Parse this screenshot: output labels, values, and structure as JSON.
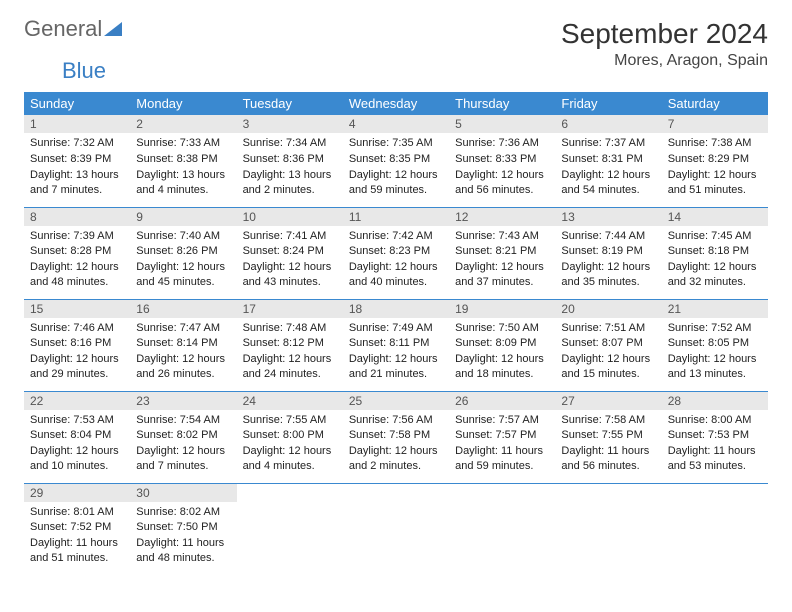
{
  "logo": {
    "word1": "General",
    "word2": "Blue"
  },
  "title": "September 2024",
  "location": "Mores, Aragon, Spain",
  "colors": {
    "header_bg": "#3a89d0",
    "header_text": "#ffffff",
    "daynum_bg": "#e8e8e8",
    "daynum_text": "#555555",
    "border": "#3a89d0",
    "logo_gray": "#666666",
    "logo_blue": "#3a7fc4"
  },
  "day_headers": [
    "Sunday",
    "Monday",
    "Tuesday",
    "Wednesday",
    "Thursday",
    "Friday",
    "Saturday"
  ],
  "weeks": [
    [
      {
        "n": "1",
        "sunrise": "Sunrise: 7:32 AM",
        "sunset": "Sunset: 8:39 PM",
        "daylight": "Daylight: 13 hours and 7 minutes."
      },
      {
        "n": "2",
        "sunrise": "Sunrise: 7:33 AM",
        "sunset": "Sunset: 8:38 PM",
        "daylight": "Daylight: 13 hours and 4 minutes."
      },
      {
        "n": "3",
        "sunrise": "Sunrise: 7:34 AM",
        "sunset": "Sunset: 8:36 PM",
        "daylight": "Daylight: 13 hours and 2 minutes."
      },
      {
        "n": "4",
        "sunrise": "Sunrise: 7:35 AM",
        "sunset": "Sunset: 8:35 PM",
        "daylight": "Daylight: 12 hours and 59 minutes."
      },
      {
        "n": "5",
        "sunrise": "Sunrise: 7:36 AM",
        "sunset": "Sunset: 8:33 PM",
        "daylight": "Daylight: 12 hours and 56 minutes."
      },
      {
        "n": "6",
        "sunrise": "Sunrise: 7:37 AM",
        "sunset": "Sunset: 8:31 PM",
        "daylight": "Daylight: 12 hours and 54 minutes."
      },
      {
        "n": "7",
        "sunrise": "Sunrise: 7:38 AM",
        "sunset": "Sunset: 8:29 PM",
        "daylight": "Daylight: 12 hours and 51 minutes."
      }
    ],
    [
      {
        "n": "8",
        "sunrise": "Sunrise: 7:39 AM",
        "sunset": "Sunset: 8:28 PM",
        "daylight": "Daylight: 12 hours and 48 minutes."
      },
      {
        "n": "9",
        "sunrise": "Sunrise: 7:40 AM",
        "sunset": "Sunset: 8:26 PM",
        "daylight": "Daylight: 12 hours and 45 minutes."
      },
      {
        "n": "10",
        "sunrise": "Sunrise: 7:41 AM",
        "sunset": "Sunset: 8:24 PM",
        "daylight": "Daylight: 12 hours and 43 minutes."
      },
      {
        "n": "11",
        "sunrise": "Sunrise: 7:42 AM",
        "sunset": "Sunset: 8:23 PM",
        "daylight": "Daylight: 12 hours and 40 minutes."
      },
      {
        "n": "12",
        "sunrise": "Sunrise: 7:43 AM",
        "sunset": "Sunset: 8:21 PM",
        "daylight": "Daylight: 12 hours and 37 minutes."
      },
      {
        "n": "13",
        "sunrise": "Sunrise: 7:44 AM",
        "sunset": "Sunset: 8:19 PM",
        "daylight": "Daylight: 12 hours and 35 minutes."
      },
      {
        "n": "14",
        "sunrise": "Sunrise: 7:45 AM",
        "sunset": "Sunset: 8:18 PM",
        "daylight": "Daylight: 12 hours and 32 minutes."
      }
    ],
    [
      {
        "n": "15",
        "sunrise": "Sunrise: 7:46 AM",
        "sunset": "Sunset: 8:16 PM",
        "daylight": "Daylight: 12 hours and 29 minutes."
      },
      {
        "n": "16",
        "sunrise": "Sunrise: 7:47 AM",
        "sunset": "Sunset: 8:14 PM",
        "daylight": "Daylight: 12 hours and 26 minutes."
      },
      {
        "n": "17",
        "sunrise": "Sunrise: 7:48 AM",
        "sunset": "Sunset: 8:12 PM",
        "daylight": "Daylight: 12 hours and 24 minutes."
      },
      {
        "n": "18",
        "sunrise": "Sunrise: 7:49 AM",
        "sunset": "Sunset: 8:11 PM",
        "daylight": "Daylight: 12 hours and 21 minutes."
      },
      {
        "n": "19",
        "sunrise": "Sunrise: 7:50 AM",
        "sunset": "Sunset: 8:09 PM",
        "daylight": "Daylight: 12 hours and 18 minutes."
      },
      {
        "n": "20",
        "sunrise": "Sunrise: 7:51 AM",
        "sunset": "Sunset: 8:07 PM",
        "daylight": "Daylight: 12 hours and 15 minutes."
      },
      {
        "n": "21",
        "sunrise": "Sunrise: 7:52 AM",
        "sunset": "Sunset: 8:05 PM",
        "daylight": "Daylight: 12 hours and 13 minutes."
      }
    ],
    [
      {
        "n": "22",
        "sunrise": "Sunrise: 7:53 AM",
        "sunset": "Sunset: 8:04 PM",
        "daylight": "Daylight: 12 hours and 10 minutes."
      },
      {
        "n": "23",
        "sunrise": "Sunrise: 7:54 AM",
        "sunset": "Sunset: 8:02 PM",
        "daylight": "Daylight: 12 hours and 7 minutes."
      },
      {
        "n": "24",
        "sunrise": "Sunrise: 7:55 AM",
        "sunset": "Sunset: 8:00 PM",
        "daylight": "Daylight: 12 hours and 4 minutes."
      },
      {
        "n": "25",
        "sunrise": "Sunrise: 7:56 AM",
        "sunset": "Sunset: 7:58 PM",
        "daylight": "Daylight: 12 hours and 2 minutes."
      },
      {
        "n": "26",
        "sunrise": "Sunrise: 7:57 AM",
        "sunset": "Sunset: 7:57 PM",
        "daylight": "Daylight: 11 hours and 59 minutes."
      },
      {
        "n": "27",
        "sunrise": "Sunrise: 7:58 AM",
        "sunset": "Sunset: 7:55 PM",
        "daylight": "Daylight: 11 hours and 56 minutes."
      },
      {
        "n": "28",
        "sunrise": "Sunrise: 8:00 AM",
        "sunset": "Sunset: 7:53 PM",
        "daylight": "Daylight: 11 hours and 53 minutes."
      }
    ],
    [
      {
        "n": "29",
        "sunrise": "Sunrise: 8:01 AM",
        "sunset": "Sunset: 7:52 PM",
        "daylight": "Daylight: 11 hours and 51 minutes."
      },
      {
        "n": "30",
        "sunrise": "Sunrise: 8:02 AM",
        "sunset": "Sunset: 7:50 PM",
        "daylight": "Daylight: 11 hours and 48 minutes."
      },
      null,
      null,
      null,
      null,
      null
    ]
  ]
}
